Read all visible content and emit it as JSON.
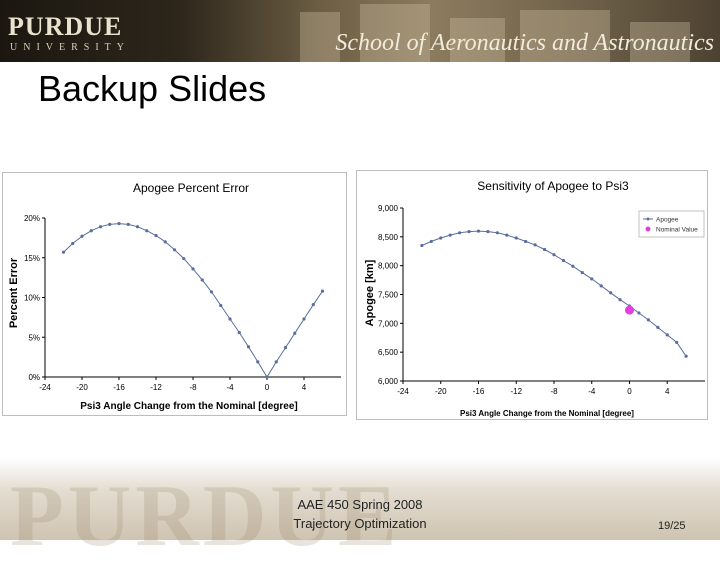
{
  "header": {
    "brand": "PURDUE",
    "brand_sub": "UNIVERSITY",
    "school": "School of Aeronautics and Astronautics"
  },
  "slide": {
    "title": "Backup Slides"
  },
  "footer": {
    "line1": "AAE 450 Spring 2008",
    "line2": "Trajectory Optimization",
    "page": "19/25"
  },
  "chart_data": [
    {
      "type": "line",
      "title": "Apogee Percent Error",
      "xlabel": "Psi3 Angle Change from the Nominal [degree]",
      "ylabel": "Percent Error",
      "xlim": [
        -24,
        8
      ],
      "ylim": [
        0,
        20
      ],
      "x_ticks": [
        "-24",
        "-20",
        "-16",
        "-12",
        "-8",
        "-4",
        "0",
        "4"
      ],
      "x_tick_values": [
        -24,
        -20,
        -16,
        -12,
        -8,
        -4,
        0,
        4
      ],
      "y_ticks": [
        "0%",
        "5%",
        "10%",
        "15%",
        "20%"
      ],
      "y_tick_values": [
        0,
        5,
        10,
        15,
        20
      ],
      "grid": false,
      "color": "#5b6e9e",
      "series": [
        {
          "x": [
            -22,
            -21,
            -20,
            -19,
            -18,
            -17,
            -16,
            -15,
            -14,
            -13,
            -12,
            -11,
            -10,
            -9,
            -8,
            -7,
            -6,
            -5,
            -4,
            -3,
            -2,
            -1,
            0,
            1,
            2,
            3,
            4,
            5,
            6
          ],
          "values": [
            15.7,
            16.8,
            17.7,
            18.4,
            18.9,
            19.2,
            19.3,
            19.2,
            18.9,
            18.4,
            17.8,
            17.0,
            16.0,
            14.9,
            13.6,
            12.2,
            10.7,
            9.0,
            7.3,
            5.6,
            3.8,
            1.9,
            0.0,
            1.9,
            3.7,
            5.5,
            7.3,
            9.1,
            10.8
          ]
        }
      ]
    },
    {
      "type": "line",
      "title": "Sensitivity of Apogee to Psi3",
      "xlabel": "Psi3 Angle Change from the Nominal [degree]",
      "ylabel": "Apogee [km]",
      "xlim": [
        -24,
        8
      ],
      "ylim": [
        6000,
        9000
      ],
      "x_ticks": [
        "-24",
        "-20",
        "-16",
        "-12",
        "-8",
        "-4",
        "0",
        "4"
      ],
      "x_tick_values": [
        -24,
        -20,
        -16,
        -12,
        -8,
        -4,
        0,
        4
      ],
      "y_ticks": [
        "6,000",
        "6,500",
        "7,000",
        "7,500",
        "8,000",
        "8,500",
        "9,000"
      ],
      "y_tick_values": [
        6000,
        6500,
        7000,
        7500,
        8000,
        8500,
        9000
      ],
      "grid": false,
      "legend_position": "top-right",
      "series": [
        {
          "name": "Apogee",
          "color": "#5b6e9e",
          "x": [
            -22,
            -21,
            -20,
            -19,
            -18,
            -17,
            -16,
            -15,
            -14,
            -13,
            -12,
            -11,
            -10,
            -9,
            -8,
            -7,
            -6,
            -5,
            -4,
            -3,
            -2,
            -1,
            0,
            1,
            2,
            3,
            4,
            5,
            6
          ],
          "values": [
            8350,
            8420,
            8480,
            8530,
            8570,
            8590,
            8600,
            8590,
            8570,
            8530,
            8480,
            8420,
            8360,
            8280,
            8190,
            8090,
            7990,
            7880,
            7770,
            7650,
            7530,
            7410,
            7300,
            7180,
            7060,
            6930,
            6800,
            6670,
            6430
          ]
        },
        {
          "name": "Nominal Value",
          "color": "#e040e0",
          "x": [
            0
          ],
          "values": [
            7230
          ]
        }
      ]
    }
  ]
}
